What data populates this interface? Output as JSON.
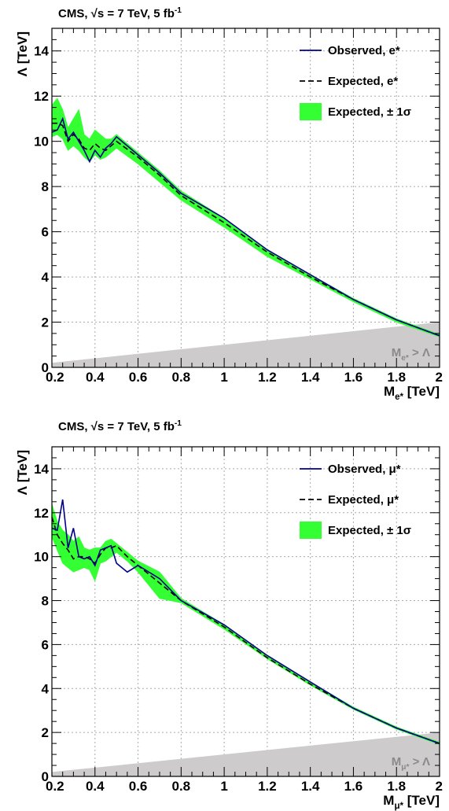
{
  "chart_data": [
    {
      "type": "line",
      "header": "CMS, √s = 7 TeV, 5 fb⁻¹",
      "ylabel": "Λ [TeV]",
      "xlabel": "M_e* [TeV]",
      "xlim": [
        0.2,
        2.0
      ],
      "ylim": [
        0,
        15
      ],
      "x_ticks": [
        "0.2",
        "0.4",
        "0.6",
        "0.8",
        "1",
        "1.2",
        "1.4",
        "1.6",
        "1.8",
        "2"
      ],
      "y_ticks": [
        "0",
        "2",
        "4",
        "6",
        "8",
        "10",
        "12",
        "14"
      ],
      "grid": true,
      "legend_position": "top-right",
      "exclusion_label": "M_e* > Λ",
      "colors": {
        "observed": "#00008b",
        "expected": "#000000",
        "band": "#33ff33",
        "excluded": "#cdcbcb"
      },
      "series": [
        {
          "name": "Observed, e*",
          "style": "solid",
          "x": [
            0.2,
            0.225,
            0.25,
            0.275,
            0.3,
            0.325,
            0.35,
            0.375,
            0.4,
            0.425,
            0.45,
            0.475,
            0.5,
            0.6,
            0.7,
            0.8,
            1.0,
            1.2,
            1.4,
            1.6,
            1.8,
            2.0
          ],
          "y": [
            10.4,
            10.5,
            11.0,
            10.1,
            10.4,
            10.0,
            9.6,
            9.1,
            9.6,
            9.3,
            9.7,
            9.9,
            10.2,
            9.4,
            8.6,
            7.7,
            6.6,
            5.2,
            4.1,
            3.0,
            2.1,
            1.4
          ]
        },
        {
          "name": "Expected, e*",
          "style": "dashed",
          "x": [
            0.2,
            0.225,
            0.25,
            0.275,
            0.3,
            0.325,
            0.35,
            0.375,
            0.4,
            0.425,
            0.45,
            0.475,
            0.5,
            0.6,
            0.7,
            0.8,
            1.0,
            1.2,
            1.4,
            1.6,
            1.8,
            2.0
          ],
          "y": [
            10.8,
            10.8,
            10.7,
            10.0,
            10.3,
            10.1,
            9.7,
            9.6,
            9.9,
            9.7,
            9.6,
            9.8,
            10.0,
            9.3,
            8.5,
            7.6,
            6.4,
            5.1,
            4.0,
            3.0,
            2.1,
            1.4
          ]
        },
        {
          "name": "Expected, ± 1σ",
          "style": "band",
          "x": [
            0.2,
            0.225,
            0.25,
            0.275,
            0.3,
            0.325,
            0.35,
            0.375,
            0.4,
            0.425,
            0.45,
            0.475,
            0.5,
            0.6,
            0.7,
            0.8,
            1.0,
            1.2,
            1.4,
            1.6,
            1.8,
            2.0
          ],
          "low": [
            10.2,
            10.3,
            10.1,
            9.6,
            9.8,
            9.6,
            9.3,
            9.1,
            9.4,
            9.2,
            9.3,
            9.5,
            9.7,
            9.0,
            8.2,
            7.4,
            6.2,
            4.9,
            3.9,
            2.9,
            2.0,
            1.35
          ],
          "high": [
            11.6,
            11.9,
            11.4,
            10.6,
            11.0,
            11.4,
            10.3,
            10.1,
            10.5,
            10.3,
            10.1,
            10.1,
            10.3,
            9.5,
            8.7,
            7.8,
            6.6,
            5.2,
            4.1,
            3.05,
            2.15,
            1.45
          ]
        }
      ]
    },
    {
      "type": "line",
      "header": "CMS, √s = 7 TeV, 5 fb⁻¹",
      "ylabel": "Λ [TeV]",
      "xlabel": "M_μ* [TeV]",
      "xlim": [
        0.2,
        2.0
      ],
      "ylim": [
        0,
        15
      ],
      "x_ticks": [
        "0.2",
        "0.4",
        "0.6",
        "0.8",
        "1",
        "1.2",
        "1.4",
        "1.6",
        "1.8",
        "2"
      ],
      "y_ticks": [
        "0",
        "2",
        "4",
        "6",
        "8",
        "10",
        "12",
        "14"
      ],
      "grid": true,
      "legend_position": "top-right",
      "exclusion_label": "M_μ* > Λ",
      "colors": {
        "observed": "#00008b",
        "expected": "#000000",
        "band": "#33ff33",
        "excluded": "#cdcbcb"
      },
      "series": [
        {
          "name": "Observed, μ*",
          "style": "solid",
          "x": [
            0.2,
            0.225,
            0.25,
            0.275,
            0.3,
            0.325,
            0.35,
            0.375,
            0.4,
            0.425,
            0.45,
            0.475,
            0.5,
            0.55,
            0.6,
            0.7,
            0.8,
            1.0,
            1.2,
            1.4,
            1.6,
            1.8,
            2.0
          ],
          "y": [
            11.3,
            11.2,
            12.6,
            10.4,
            11.3,
            10.0,
            9.9,
            10.0,
            9.6,
            10.3,
            10.4,
            10.5,
            9.7,
            9.3,
            9.6,
            9.0,
            8.0,
            6.9,
            5.5,
            4.3,
            3.1,
            2.2,
            1.5
          ]
        },
        {
          "name": "Expected, μ*",
          "style": "dashed",
          "x": [
            0.2,
            0.225,
            0.25,
            0.275,
            0.3,
            0.325,
            0.35,
            0.375,
            0.4,
            0.425,
            0.45,
            0.475,
            0.5,
            0.55,
            0.6,
            0.7,
            0.8,
            1.0,
            1.2,
            1.4,
            1.6,
            1.8,
            2.0
          ],
          "y": [
            11.8,
            11.0,
            10.6,
            10.3,
            9.9,
            10.0,
            10.0,
            9.9,
            9.7,
            10.1,
            10.4,
            10.4,
            10.5,
            10.0,
            9.6,
            8.8,
            8.0,
            6.8,
            5.4,
            4.2,
            3.1,
            2.2,
            1.5
          ]
        },
        {
          "name": "Expected, ± 1σ",
          "style": "band",
          "x": [
            0.2,
            0.225,
            0.25,
            0.275,
            0.3,
            0.325,
            0.35,
            0.375,
            0.4,
            0.425,
            0.45,
            0.475,
            0.5,
            0.55,
            0.6,
            0.7,
            0.8,
            1.0,
            1.2,
            1.4,
            1.6,
            1.8,
            2.0
          ],
          "low": [
            10.9,
            10.3,
            9.7,
            9.5,
            9.3,
            9.4,
            9.5,
            9.4,
            8.9,
            9.7,
            9.8,
            10.0,
            10.2,
            9.8,
            9.3,
            8.1,
            7.9,
            6.7,
            5.35,
            4.15,
            3.05,
            2.15,
            1.45
          ],
          "high": [
            12.4,
            11.6,
            11.2,
            11.0,
            10.7,
            10.9,
            10.4,
            10.3,
            10.4,
            10.4,
            10.7,
            10.8,
            10.6,
            10.2,
            9.8,
            9.3,
            8.1,
            6.9,
            5.5,
            4.3,
            3.15,
            2.25,
            1.55
          ]
        }
      ]
    }
  ]
}
